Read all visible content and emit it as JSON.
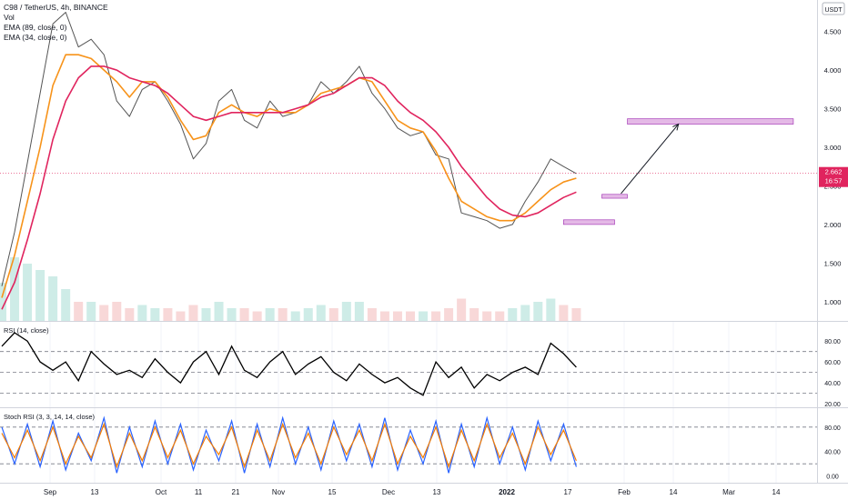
{
  "header": {
    "title": "C98 / TetherUS, 4h, BINANCE",
    "indicators": [
      "Vol",
      "EMA (89, close, 0)",
      "EMA (34, close, 0)"
    ],
    "currency": "USDT"
  },
  "price_tag": {
    "value": "2.662",
    "countdown": "16:57"
  },
  "chart_data": {
    "type": "line",
    "price_axis": {
      "ticks": [
        "4.500",
        "4.000",
        "3.500",
        "3.000",
        "2.500",
        "2.000",
        "1.500",
        "1.000"
      ],
      "ylim": [
        0.75,
        4.85
      ]
    },
    "time_axis": {
      "ticks": [
        "Sep",
        "13",
        "Oct",
        "11",
        "21",
        "Nov",
        "15",
        "Dec",
        "13",
        "2022",
        "17",
        "Feb",
        "14",
        "Mar",
        "14"
      ]
    },
    "series": [
      {
        "key": "close",
        "color": "#555555",
        "values": [
          1.2,
          1.9,
          2.8,
          3.7,
          4.6,
          4.75,
          4.3,
          4.4,
          4.2,
          3.6,
          3.4,
          3.75,
          3.85,
          3.6,
          3.3,
          2.85,
          3.05,
          3.6,
          3.75,
          3.35,
          3.25,
          3.6,
          3.4,
          3.45,
          3.55,
          3.85,
          3.7,
          3.85,
          4.05,
          3.7,
          3.5,
          3.25,
          3.15,
          3.2,
          2.9,
          2.85,
          2.15,
          2.1,
          2.05,
          1.95,
          2.0,
          2.3,
          2.55,
          2.85,
          2.75,
          2.66
        ],
        "x_start": 0,
        "x_step": 1
      },
      {
        "key": "ema34",
        "color": "#f7931a",
        "values": [
          1.05,
          1.6,
          2.3,
          3.0,
          3.8,
          4.2,
          4.2,
          4.15,
          4.0,
          3.85,
          3.65,
          3.85,
          3.85,
          3.65,
          3.35,
          3.1,
          3.15,
          3.45,
          3.55,
          3.45,
          3.4,
          3.5,
          3.45,
          3.45,
          3.55,
          3.7,
          3.75,
          3.8,
          3.9,
          3.85,
          3.6,
          3.35,
          3.25,
          3.2,
          2.95,
          2.6,
          2.3,
          2.2,
          2.1,
          2.05,
          2.05,
          2.15,
          2.3,
          2.45,
          2.55,
          2.6
        ],
        "x_start": 0,
        "x_step": 1
      },
      {
        "key": "ema89",
        "color": "#e0245e",
        "values": [
          0.9,
          1.25,
          1.8,
          2.4,
          3.1,
          3.6,
          3.9,
          4.05,
          4.05,
          4.0,
          3.9,
          3.85,
          3.8,
          3.7,
          3.55,
          3.4,
          3.35,
          3.4,
          3.45,
          3.45,
          3.45,
          3.45,
          3.45,
          3.5,
          3.55,
          3.65,
          3.7,
          3.8,
          3.9,
          3.9,
          3.8,
          3.6,
          3.45,
          3.35,
          3.2,
          3.0,
          2.75,
          2.55,
          2.35,
          2.2,
          2.12,
          2.1,
          2.15,
          2.25,
          2.35,
          2.42
        ],
        "x_start": 0,
        "x_step": 1
      }
    ],
    "annotations": {
      "boxes": [
        {
          "x0": 49,
          "x1": 62,
          "y0": 3.3,
          "y1": 3.37,
          "color": "#e4b9e6"
        },
        {
          "x0": 47,
          "x1": 49,
          "y0": 2.34,
          "y1": 2.39,
          "color": "#e4b9e6"
        },
        {
          "x0": 44,
          "x1": 48,
          "y0": 2.0,
          "y1": 2.06,
          "color": "#e4b9e6"
        }
      ],
      "arrow": {
        "x0": 48.5,
        "y0": 2.4,
        "x1": 53,
        "y1": 3.3
      },
      "current_price_line": 2.662
    },
    "volume": [
      0.6,
      1.0,
      0.9,
      0.8,
      0.7,
      0.5,
      0.3,
      0.3,
      0.25,
      0.3,
      0.2,
      0.25,
      0.2,
      0.2,
      0.15,
      0.25,
      0.2,
      0.3,
      0.2,
      0.2,
      0.15,
      0.2,
      0.2,
      0.15,
      0.2,
      0.25,
      0.2,
      0.3,
      0.3,
      0.2,
      0.15,
      0.15,
      0.15,
      0.15,
      0.15,
      0.2,
      0.35,
      0.2,
      0.15,
      0.15,
      0.2,
      0.25,
      0.3,
      0.35,
      0.25,
      0.2
    ],
    "rsi": {
      "title": "RSI (14, close)",
      "ticks": [
        "80.00",
        "60.00",
        "40.00",
        "20.00"
      ],
      "levels": [
        70,
        50,
        30
      ],
      "ylim": [
        20,
        95
      ],
      "values": [
        75,
        88,
        80,
        60,
        52,
        60,
        42,
        70,
        58,
        48,
        52,
        45,
        63,
        50,
        40,
        60,
        70,
        48,
        75,
        52,
        45,
        60,
        70,
        48,
        58,
        65,
        50,
        42,
        58,
        48,
        40,
        45,
        35,
        28,
        60,
        45,
        55,
        35,
        48,
        42,
        50,
        55,
        48,
        78,
        68,
        55
      ],
      "color": "#000000"
    },
    "stoch_rsi": {
      "title": "Stoch RSI (3, 3, 14, 14, close)",
      "ticks": [
        "80.00",
        "40.00",
        "0.00"
      ],
      "levels": [
        80,
        20
      ],
      "ylim": [
        -5,
        105
      ],
      "k": [
        80,
        20,
        85,
        15,
        90,
        10,
        70,
        25,
        95,
        5,
        80,
        15,
        90,
        20,
        85,
        10,
        75,
        25,
        90,
        5,
        85,
        15,
        95,
        20,
        80,
        10,
        90,
        25,
        85,
        15,
        95,
        10,
        75,
        20,
        90,
        5,
        85,
        15,
        95,
        20,
        80,
        10,
        90,
        25,
        85,
        15
      ],
      "d": [
        70,
        30,
        75,
        25,
        80,
        20,
        65,
        30,
        85,
        15,
        70,
        25,
        80,
        30,
        75,
        20,
        65,
        35,
        80,
        15,
        75,
        25,
        85,
        30,
        70,
        20,
        80,
        35,
        75,
        25,
        85,
        20,
        65,
        30,
        80,
        15,
        75,
        25,
        85,
        30,
        70,
        20,
        80,
        35,
        75,
        25
      ],
      "k_color": "#2962ff",
      "d_color": "#f57c00"
    }
  }
}
